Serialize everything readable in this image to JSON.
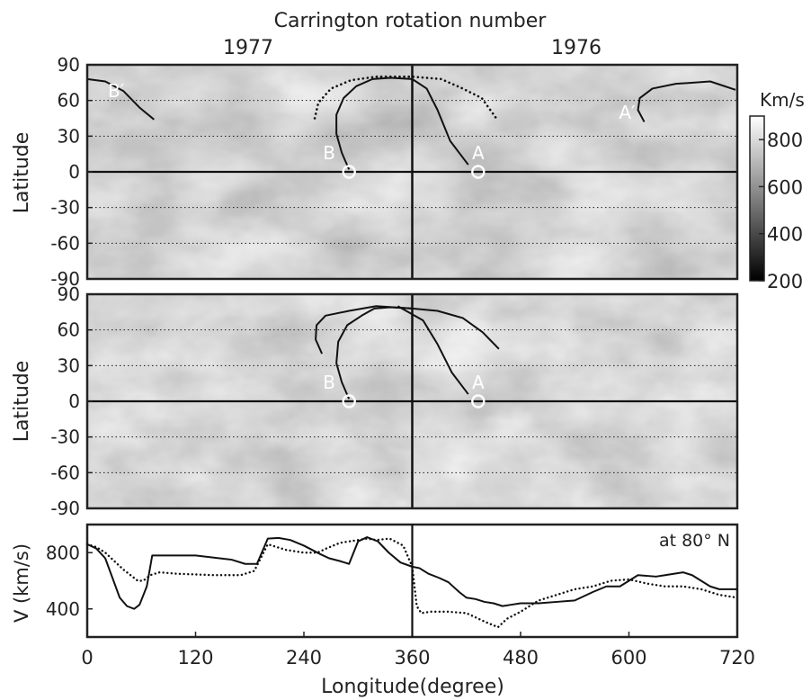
{
  "chart_data": [
    {
      "type": "heatmap",
      "title": "Carrington rotation number",
      "ylabel": "Latitude",
      "top_labels": [
        "1977",
        "1976"
      ],
      "xlim": [
        0,
        720
      ],
      "ylim": [
        -90,
        90
      ],
      "yticks": [
        "90",
        "60",
        "30",
        "0",
        "-30",
        "-60",
        "-90"
      ],
      "grid_lat": [
        60,
        30,
        -30,
        -60
      ],
      "colorbar": {
        "unit": "Km/s",
        "range": [
          200,
          900
        ],
        "ticks": [
          "800",
          "600",
          "400",
          "200"
        ],
        "tick_values": [
          800,
          600,
          400,
          200
        ]
      },
      "markers": [
        {
          "label": "B",
          "lon": 290,
          "lat": 0
        },
        {
          "label": "A",
          "lon": 433,
          "lat": 0
        }
      ],
      "labels": [
        {
          "text": "B′",
          "lon": 32,
          "lat": 68
        },
        {
          "text": "B",
          "lon": 268,
          "lat": 16
        },
        {
          "text": "A",
          "lon": 433,
          "lat": 16
        },
        {
          "text": "A′",
          "lon": 598,
          "lat": 50
        }
      ],
      "solid_lines": [
        [
          [
            0,
            78
          ],
          [
            20,
            76
          ],
          [
            40,
            68
          ],
          [
            58,
            54
          ],
          [
            74,
            44
          ]
        ],
        [
          [
            290,
            2
          ],
          [
            282,
            16
          ],
          [
            276,
            32
          ],
          [
            276,
            48
          ],
          [
            284,
            62
          ],
          [
            298,
            72
          ],
          [
            316,
            78
          ],
          [
            336,
            79
          ],
          [
            360,
            78
          ]
        ],
        [
          [
            422,
            6
          ],
          [
            402,
            26
          ],
          [
            388,
            52
          ],
          [
            376,
            70
          ],
          [
            360,
            78
          ]
        ],
        [
          [
            617,
            42
          ],
          [
            610,
            52
          ],
          [
            612,
            62
          ],
          [
            626,
            70
          ],
          [
            652,
            74
          ],
          [
            690,
            76
          ],
          [
            718,
            69
          ]
        ]
      ],
      "dotted_lines": [
        [
          [
            252,
            45
          ],
          [
            256,
            58
          ],
          [
            270,
            70
          ],
          [
            292,
            77
          ],
          [
            320,
            80
          ],
          [
            360,
            80
          ],
          [
            392,
            78
          ],
          [
            416,
            70
          ],
          [
            437,
            62
          ],
          [
            454,
            44
          ]
        ]
      ]
    },
    {
      "type": "heatmap",
      "ylabel": "Latitude",
      "xlim": [
        0,
        720
      ],
      "ylim": [
        -90,
        90
      ],
      "yticks": [
        "90",
        "60",
        "30",
        "0",
        "-30",
        "-60",
        "-90"
      ],
      "grid_lat": [
        60,
        30,
        -30,
        -60
      ],
      "markers": [
        {
          "label": "B",
          "lon": 290,
          "lat": 0
        },
        {
          "label": "A",
          "lon": 433,
          "lat": 0
        }
      ],
      "labels": [
        {
          "text": "B",
          "lon": 268,
          "lat": 16
        },
        {
          "text": "A",
          "lon": 433,
          "lat": 16
        }
      ],
      "solid_lines": [
        [
          [
            290,
            2
          ],
          [
            282,
            16
          ],
          [
            276,
            32
          ],
          [
            278,
            50
          ],
          [
            288,
            64
          ],
          [
            304,
            72
          ],
          [
            318,
            78
          ],
          [
            336,
            79
          ],
          [
            360,
            78
          ]
        ],
        [
          [
            260,
            40
          ],
          [
            253,
            52
          ],
          [
            254,
            64
          ],
          [
            264,
            72
          ],
          [
            290,
            76
          ],
          [
            320,
            80
          ],
          [
            360,
            78
          ],
          [
            388,
            76
          ],
          [
            416,
            70
          ],
          [
            438,
            58
          ],
          [
            456,
            44
          ]
        ],
        [
          [
            422,
            6
          ],
          [
            404,
            24
          ],
          [
            388,
            48
          ],
          [
            372,
            68
          ],
          [
            344,
            80
          ]
        ]
      ],
      "dotted_lines": []
    },
    {
      "type": "line",
      "xlabel": "Longitude(degree)",
      "ylabel": "V (km/s)",
      "annotation": "at 80° N",
      "xlim": [
        0,
        720
      ],
      "ylim": [
        200,
        1000
      ],
      "xticks": [
        0,
        120,
        240,
        360,
        480,
        600,
        720
      ],
      "yticks": [
        400,
        800
      ],
      "series": [
        {
          "style": "solid",
          "x": [
            0,
            10,
            20,
            28,
            36,
            44,
            52,
            58,
            66,
            72,
            80,
            120,
            160,
            175,
            188,
            200,
            212,
            225,
            240,
            258,
            268,
            280,
            290,
            300,
            310,
            322,
            334,
            347,
            360,
            368,
            378,
            390,
            400,
            412,
            420,
            430,
            440,
            450,
            460,
            470,
            480,
            500,
            520,
            540,
            560,
            575,
            590,
            600,
            610,
            630,
            640,
            660,
            670,
            680,
            690,
            700,
            720
          ],
          "y": [
            860,
            830,
            760,
            620,
            480,
            420,
            400,
            430,
            560,
            780,
            780,
            780,
            750,
            720,
            720,
            900,
            905,
            890,
            850,
            790,
            760,
            740,
            720,
            880,
            910,
            880,
            800,
            730,
            700,
            690,
            650,
            620,
            590,
            520,
            480,
            470,
            450,
            440,
            420,
            430,
            440,
            440,
            450,
            460,
            520,
            560,
            560,
            600,
            640,
            630,
            640,
            660,
            640,
            600,
            560,
            540,
            540
          ]
        },
        {
          "style": "dotted",
          "x": [
            0,
            10,
            20,
            30,
            40,
            50,
            56,
            62,
            70,
            80,
            100,
            140,
            170,
            185,
            200,
            220,
            240,
            255,
            265,
            280,
            290,
            300,
            310,
            320,
            335,
            350,
            360,
            365,
            370,
            380,
            400,
            420,
            440,
            455,
            465,
            480,
            500,
            520,
            540,
            560,
            580,
            600,
            620,
            640,
            660,
            680,
            700,
            720
          ],
          "y": [
            860,
            840,
            800,
            740,
            680,
            630,
            600,
            600,
            640,
            660,
            650,
            640,
            640,
            670,
            860,
            820,
            800,
            800,
            830,
            870,
            880,
            890,
            900,
            890,
            900,
            850,
            700,
            420,
            370,
            380,
            380,
            370,
            310,
            270,
            330,
            380,
            460,
            500,
            540,
            560,
            600,
            610,
            580,
            560,
            560,
            540,
            500,
            480
          ]
        }
      ]
    }
  ]
}
